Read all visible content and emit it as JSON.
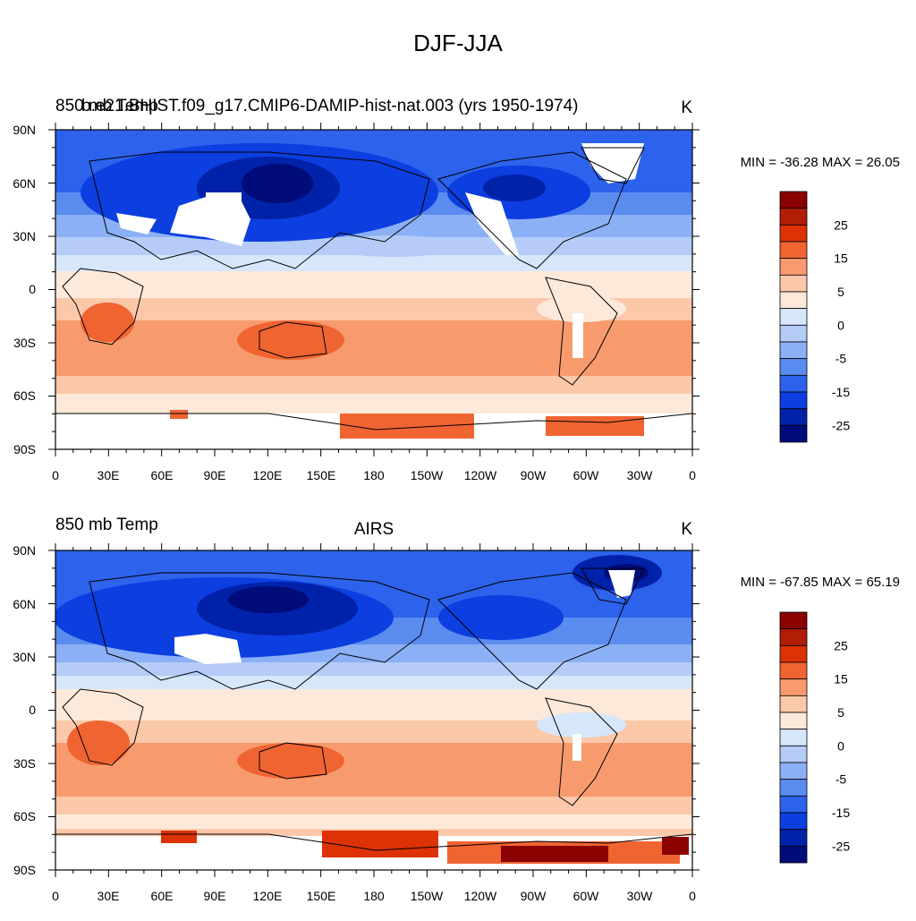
{
  "figure": {
    "title": "DJF-JJA"
  },
  "panels": [
    {
      "id": "top",
      "left_title": "850 mb Temp",
      "overlap_title": "b.e21.BHIST.f09_g17.CMIP6-DAMIP-hist-nat.003 (yrs 1950-1974)",
      "center_title": "",
      "units": "K",
      "minmax": "MIN = -36.28 MAX =  26.05",
      "lat_labels": [
        "90N",
        "60N",
        "30N",
        "0",
        "30S",
        "60S",
        "90S"
      ],
      "lon_labels": [
        "0",
        "30E",
        "60E",
        "90E",
        "120E",
        "150E",
        "180",
        "150W",
        "120W",
        "90W",
        "60W",
        "30W",
        "0"
      ]
    },
    {
      "id": "bottom",
      "left_title": "850 mb Temp",
      "overlap_title": "",
      "center_title": "AIRS",
      "units": "K",
      "minmax": "MIN = -67.85 MAX =  65.19",
      "lat_labels": [
        "90N",
        "60N",
        "30N",
        "0",
        "30S",
        "60S",
        "90S"
      ],
      "lon_labels": [
        "0",
        "30E",
        "60E",
        "90E",
        "120E",
        "150E",
        "180",
        "150W",
        "120W",
        "90W",
        "60W",
        "30W",
        "0"
      ]
    }
  ],
  "colorbar": {
    "labels": [
      "25",
      "15",
      "5",
      "0",
      "-5",
      "-15",
      "-25"
    ],
    "colors": [
      "#8b0000",
      "#b01e05",
      "#dc3205",
      "#f06432",
      "#f79b6e",
      "#fcc8aa",
      "#fde9d9",
      "#d6e6fb",
      "#b4ccf7",
      "#8cb0f5",
      "#5a8cf0",
      "#2c62ec",
      "#0c3ee0",
      "#0022a8",
      "#000c7a"
    ]
  },
  "chart_data": {
    "type": "map",
    "title": "DJF-JJA",
    "variable": "850 mb Temp",
    "units": "K",
    "contour_levels": [
      -30,
      -25,
      -20,
      -15,
      -10,
      -5,
      -2.5,
      0,
      2.5,
      5,
      10,
      15,
      20,
      25,
      30
    ],
    "panels": [
      {
        "name": "b.e21.BHIST.f09_g17.CMIP6-DAMIP-hist-nat.003 (yrs 1950-1974)",
        "min": -36.28,
        "max": 26.05
      },
      {
        "name": "AIRS",
        "min": -67.85,
        "max": 65.19
      }
    ],
    "lat_range": [
      -90,
      90
    ],
    "lon_range": [
      0,
      360
    ]
  }
}
